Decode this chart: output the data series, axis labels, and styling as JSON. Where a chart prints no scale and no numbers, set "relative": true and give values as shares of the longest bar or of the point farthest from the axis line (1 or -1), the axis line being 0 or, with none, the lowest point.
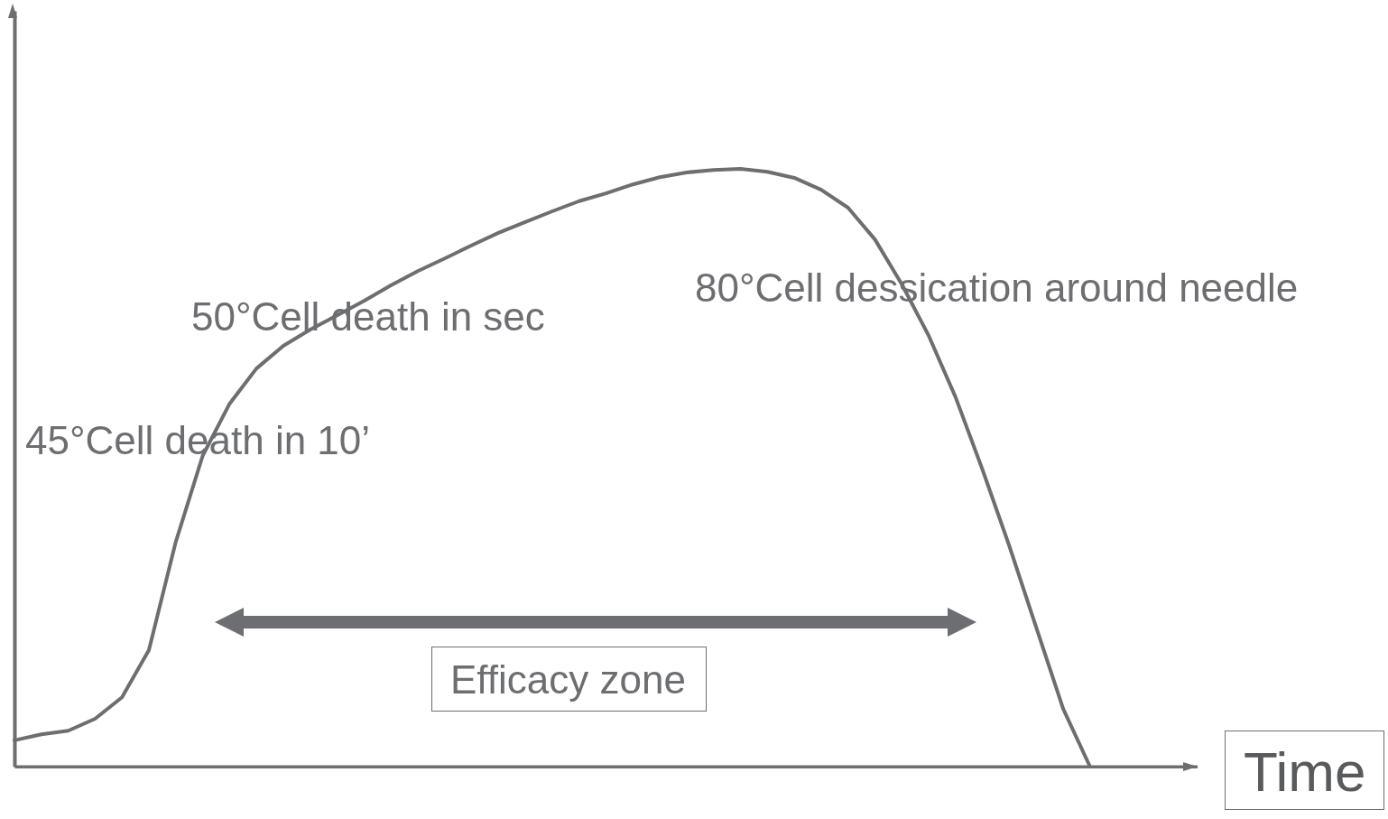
{
  "chart_data": {
    "type": "line",
    "relative": true,
    "xlabel": "Time",
    "tick_labels": false,
    "grid": false,
    "marker": "none",
    "line_style": "solid",
    "categories": [
      null,
      null,
      null,
      null,
      null,
      null,
      null,
      null,
      null,
      null,
      null,
      null,
      null,
      null,
      null,
      null,
      null,
      null,
      null,
      null,
      null,
      null,
      null,
      null,
      null,
      null,
      null,
      null,
      null,
      null,
      null,
      null,
      null,
      null,
      null,
      null,
      null,
      null,
      null,
      null,
      null,
      null,
      null,
      null,
      null
    ],
    "series": [
      {
        "color": "#6d6e71",
        "values": [
          0.044,
          0.054,
          0.06,
          0.08,
          0.116,
          0.195,
          0.376,
          0.52,
          0.607,
          0.666,
          0.704,
          0.731,
          0.755,
          0.779,
          0.805,
          0.829,
          0.85,
          0.872,
          0.893,
          0.911,
          0.929,
          0.946,
          0.959,
          0.974,
          0.986,
          0.994,
          0.998,
          1.0,
          0.995,
          0.985,
          0.965,
          0.935,
          0.882,
          0.807,
          0.721,
          0.618,
          0.497,
          0.369,
          0.233,
          0.097,
          0,
          null,
          null,
          null,
          null
        ]
      }
    ],
    "annotations": [
      "45°Cell death in 10’",
      "50°Cell death in sec",
      "80°Cell dessication around needle",
      "Efficacy zone"
    ]
  }
}
